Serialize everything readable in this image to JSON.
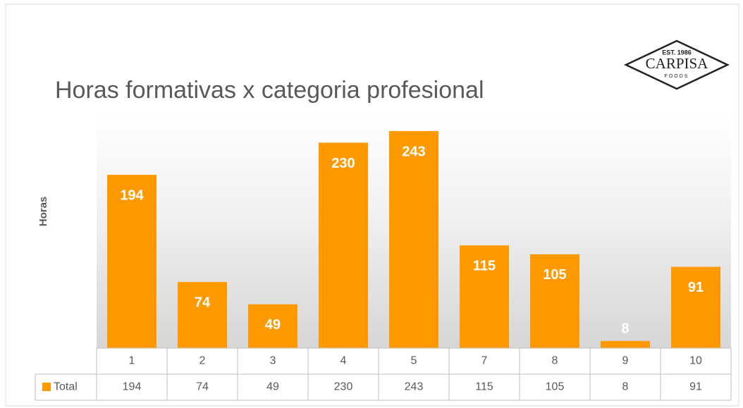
{
  "chart_data": {
    "type": "bar",
    "title": "Horas formativas x categoria profesional",
    "y_label": "Horas",
    "categories": [
      "1",
      "2",
      "3",
      "4",
      "5",
      "7",
      "8",
      "9",
      "10"
    ],
    "series": [
      {
        "name": "Total",
        "color": "#ff9900",
        "values": [
          194,
          74,
          49,
          230,
          243,
          115,
          105,
          8,
          91
        ]
      }
    ],
    "ylim": [
      0,
      250
    ],
    "data_table": true
  },
  "logo": {
    "est": "EST. 1986",
    "name": "CARPISA",
    "sub": "FOODS"
  }
}
